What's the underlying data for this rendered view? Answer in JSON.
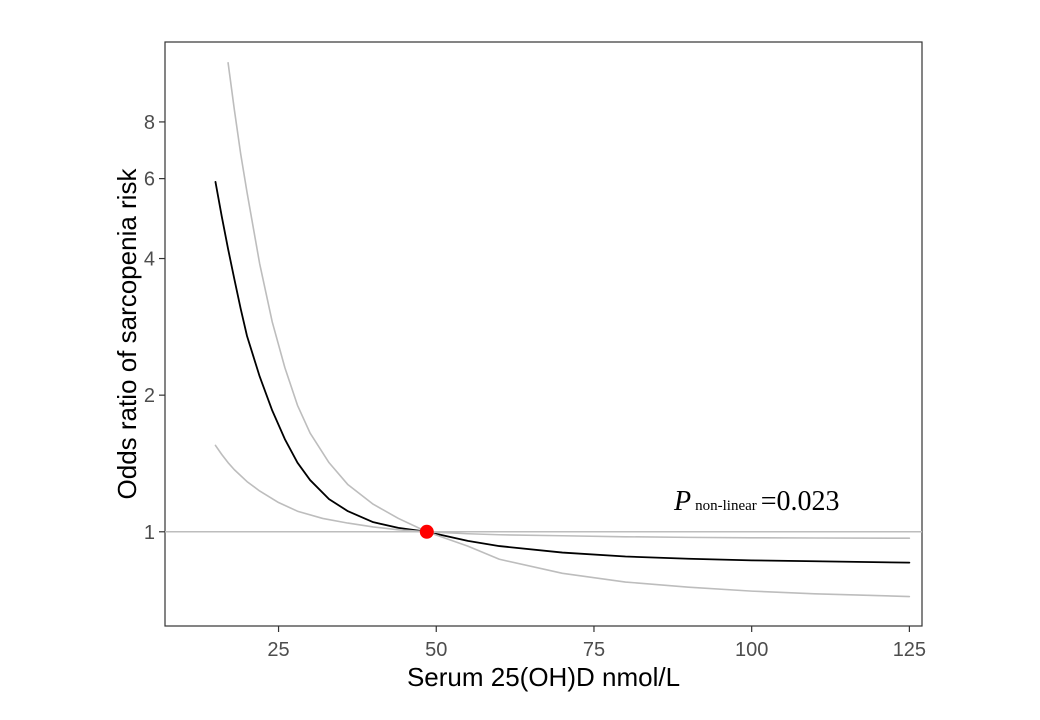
{
  "chart_data": {
    "type": "line",
    "title": "",
    "xlabel": "Serum 25(OH)D nmol/L",
    "ylabel": "Odds ratio of sarcopenia risk",
    "x_scale": "linear",
    "y_scale": "log",
    "xlim": [
      7,
      127
    ],
    "ylim": [
      0.62,
      12
    ],
    "x_ticks": [
      25,
      50,
      75,
      100,
      125
    ],
    "y_ticks": [
      1,
      2,
      4,
      6,
      8
    ],
    "grid": false,
    "legend": "none",
    "reference_line": {
      "y": 1,
      "color": "#bdbdbd"
    },
    "reference_point": {
      "x": 48.5,
      "y": 1,
      "color": "#ff0000"
    },
    "series": [
      {
        "role": "estimate",
        "color": "#000000",
        "points": [
          [
            15,
            5.9
          ],
          [
            16,
            4.95
          ],
          [
            17,
            4.2
          ],
          [
            18,
            3.6
          ],
          [
            19,
            3.1
          ],
          [
            20,
            2.7
          ],
          [
            22,
            2.2
          ],
          [
            24,
            1.85
          ],
          [
            26,
            1.6
          ],
          [
            28,
            1.42
          ],
          [
            30,
            1.3
          ],
          [
            33,
            1.18
          ],
          [
            36,
            1.11
          ],
          [
            40,
            1.05
          ],
          [
            44,
            1.02
          ],
          [
            48.5,
            1.0
          ],
          [
            55,
            0.955
          ],
          [
            60,
            0.93
          ],
          [
            70,
            0.9
          ],
          [
            80,
            0.882
          ],
          [
            90,
            0.872
          ],
          [
            100,
            0.865
          ],
          [
            110,
            0.861
          ],
          [
            125,
            0.855
          ]
        ]
      },
      {
        "role": "upper-ci",
        "color": "#bdbdbd",
        "points": [
          [
            17,
            10.8
          ],
          [
            18,
            8.5
          ],
          [
            19,
            6.8
          ],
          [
            20,
            5.6
          ],
          [
            22,
            3.9
          ],
          [
            24,
            2.9
          ],
          [
            26,
            2.3
          ],
          [
            28,
            1.9
          ],
          [
            30,
            1.65
          ],
          [
            33,
            1.42
          ],
          [
            36,
            1.27
          ],
          [
            40,
            1.15
          ],
          [
            44,
            1.07
          ],
          [
            48.5,
            1.0
          ],
          [
            55,
            0.99
          ],
          [
            60,
            0.985
          ],
          [
            70,
            0.98
          ],
          [
            80,
            0.975
          ],
          [
            90,
            0.972
          ],
          [
            100,
            0.97
          ],
          [
            110,
            0.969
          ],
          [
            125,
            0.968
          ]
        ]
      },
      {
        "role": "lower-ci",
        "color": "#bdbdbd",
        "points": [
          [
            15,
            1.55
          ],
          [
            16,
            1.48
          ],
          [
            17,
            1.42
          ],
          [
            18,
            1.37
          ],
          [
            20,
            1.29
          ],
          [
            22,
            1.23
          ],
          [
            25,
            1.16
          ],
          [
            28,
            1.11
          ],
          [
            32,
            1.07
          ],
          [
            36,
            1.045
          ],
          [
            40,
            1.025
          ],
          [
            44,
            1.01
          ],
          [
            48.5,
            1.0
          ],
          [
            55,
            0.93
          ],
          [
            60,
            0.87
          ],
          [
            70,
            0.81
          ],
          [
            80,
            0.775
          ],
          [
            90,
            0.755
          ],
          [
            100,
            0.74
          ],
          [
            110,
            0.73
          ],
          [
            125,
            0.72
          ]
        ]
      }
    ],
    "annotation": {
      "symbol": "P",
      "subscript": "non-linear",
      "value": "=0.023"
    }
  }
}
